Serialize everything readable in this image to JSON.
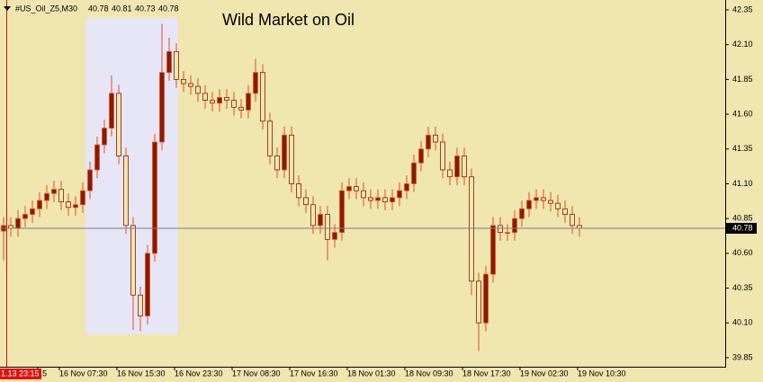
{
  "chart_data": {
    "type": "candlestick",
    "title": "Wild Market on Oil",
    "symbol": "#US_Oil_Z5,M30",
    "last_bar": [
      40.78,
      40.81,
      40.73,
      40.78
    ],
    "crosshair_label": "1.13 23:15",
    "current_price": 40.78,
    "up_color": "#8b1a00",
    "wick_color": "#e0501e",
    "categories": [
      null,
      null,
      null,
      null,
      null,
      "15",
      null,
      null,
      "16 Nov 07:30",
      null,
      null,
      null,
      null,
      null,
      null,
      null,
      "16 Nov 15:30",
      null,
      null,
      null,
      null,
      null,
      null,
      null,
      "16 Nov 23:30",
      null,
      null,
      null,
      null,
      null,
      null,
      null,
      "17 Nov 08:30",
      null,
      null,
      null,
      null,
      null,
      null,
      null,
      "17 Nov 16:30",
      null,
      null,
      null,
      null,
      null,
      null,
      null,
      "18 Nov 01:30",
      null,
      null,
      null,
      null,
      null,
      null,
      null,
      "18 Nov 09:30",
      null,
      null,
      null,
      null,
      null,
      null,
      null,
      "18 Nov 17:30",
      null,
      null,
      null,
      null,
      null,
      null,
      null,
      "19 Nov 02:30",
      null,
      null,
      null,
      null,
      null,
      null,
      null,
      "19 Nov 10:30"
    ],
    "open": [
      40.76,
      40.8,
      40.78,
      40.85,
      40.88,
      40.92,
      40.98,
      41.03,
      41.06,
      40.97,
      40.93,
      40.95,
      41.05,
      41.2,
      41.38,
      41.5,
      41.75,
      41.3,
      40.8,
      40.3,
      40.15,
      40.6,
      41.4,
      41.9,
      42.05,
      41.85,
      41.82,
      41.8,
      41.75,
      41.7,
      41.68,
      41.72,
      41.7,
      41.65,
      41.63,
      41.75,
      41.9,
      41.55,
      41.3,
      41.2,
      41.45,
      41.1,
      41.0,
      40.95,
      40.8,
      40.88,
      40.7,
      40.75,
      41.05,
      41.08,
      41.05,
      41.0,
      40.98,
      41.0,
      40.97,
      41.0,
      41.05,
      41.1,
      41.25,
      41.35,
      41.45,
      41.4,
      41.2,
      41.15,
      41.3,
      41.15,
      40.4,
      40.1,
      40.45,
      40.8,
      40.75,
      40.75,
      40.85,
      40.92,
      40.98,
      41.0,
      40.98,
      40.96,
      40.92,
      40.88,
      40.8
    ],
    "high": [
      40.86,
      40.86,
      40.91,
      40.94,
      40.98,
      41.04,
      41.09,
      41.12,
      41.12,
      41.03,
      41.01,
      41.11,
      41.26,
      41.44,
      41.56,
      41.88,
      41.81,
      41.36,
      40.86,
      40.36,
      40.66,
      41.46,
      42.25,
      42.15,
      42.11,
      41.91,
      41.88,
      41.86,
      41.81,
      41.76,
      41.78,
      41.78,
      41.76,
      41.71,
      41.81,
      42.0,
      41.96,
      41.61,
      41.36,
      41.51,
      41.51,
      41.16,
      41.06,
      41.01,
      40.94,
      40.94,
      40.81,
      41.11,
      41.14,
      41.14,
      41.11,
      41.06,
      41.06,
      41.06,
      41.06,
      41.11,
      41.16,
      41.31,
      41.41,
      41.51,
      41.51,
      41.46,
      41.26,
      41.36,
      41.36,
      41.21,
      40.46,
      40.51,
      40.86,
      40.86,
      40.81,
      40.91,
      40.98,
      41.04,
      41.06,
      41.06,
      41.04,
      41.02,
      40.98,
      40.94,
      40.86
    ],
    "low": [
      40.55,
      40.72,
      40.72,
      40.79,
      40.82,
      40.86,
      40.92,
      40.97,
      40.91,
      40.87,
      40.87,
      40.89,
      40.99,
      41.14,
      41.32,
      41.44,
      41.24,
      40.74,
      40.05,
      40.04,
      40.09,
      40.54,
      41.34,
      41.84,
      41.79,
      41.76,
      41.74,
      41.69,
      41.64,
      41.62,
      41.62,
      41.64,
      41.59,
      41.57,
      41.57,
      41.69,
      41.49,
      41.24,
      41.14,
      41.14,
      41.04,
      40.94,
      40.89,
      40.74,
      40.74,
      40.55,
      40.64,
      40.69,
      40.99,
      40.99,
      40.94,
      40.92,
      40.92,
      40.91,
      40.91,
      40.94,
      40.99,
      41.04,
      41.19,
      41.29,
      41.34,
      41.14,
      41.09,
      41.09,
      41.09,
      40.3,
      39.9,
      40.04,
      40.39,
      40.69,
      40.69,
      40.69,
      40.79,
      40.86,
      40.92,
      40.92,
      40.9,
      40.86,
      40.82,
      40.74,
      40.72
    ],
    "close": [
      40.8,
      40.78,
      40.85,
      40.88,
      40.92,
      40.98,
      41.03,
      41.06,
      40.97,
      40.93,
      40.95,
      41.05,
      41.2,
      41.38,
      41.5,
      41.75,
      41.3,
      40.8,
      40.3,
      40.15,
      40.6,
      41.4,
      41.9,
      42.05,
      41.85,
      41.82,
      41.8,
      41.75,
      41.7,
      41.68,
      41.72,
      41.7,
      41.65,
      41.63,
      41.75,
      41.9,
      41.55,
      41.3,
      41.2,
      41.45,
      41.1,
      41.0,
      40.95,
      40.8,
      40.88,
      40.7,
      40.75,
      41.05,
      41.08,
      41.05,
      41.0,
      40.98,
      41.0,
      40.97,
      41.0,
      41.05,
      41.1,
      41.25,
      41.35,
      41.45,
      41.4,
      41.2,
      41.15,
      41.3,
      41.15,
      40.4,
      40.1,
      40.45,
      40.8,
      40.75,
      40.75,
      40.85,
      40.92,
      40.98,
      41.0,
      40.98,
      40.96,
      40.92,
      40.88,
      40.8,
      40.78
    ],
    "ylim": [
      39.785,
      42.421
    ],
    "yticks": [
      42.35,
      {
        "value": 42.1,
        "label": "42.10"
      },
      41.85,
      {
        "value": 41.6,
        "label": "41.60"
      },
      41.35,
      {
        "value": 41.1,
        "label": "41.10"
      },
      40.85,
      {
        "value": 40.6,
        "label": "40.60"
      },
      40.35,
      {
        "value": 40.1,
        "label": "40.10"
      },
      39.85
    ]
  }
}
